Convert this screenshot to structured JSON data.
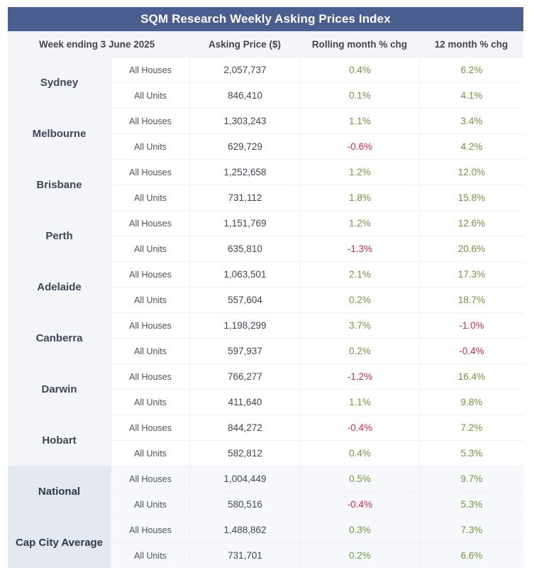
{
  "title": "SQM Research Weekly Asking Prices Index",
  "headers": {
    "week": "Week ending 3 June 2025",
    "price": "Asking Price ($)",
    "rolling": "Rolling month % chg",
    "twelve": "12 month % chg"
  },
  "colors": {
    "header_bar": "#4a5f8f",
    "positive": "#6d9a3a",
    "negative": "#d8284a"
  },
  "groups": [
    {
      "city": "Sydney",
      "rows": [
        {
          "type": "All Houses",
          "price": "2,057,737",
          "rolling": "0.4%",
          "twelve": "6.2%"
        },
        {
          "type": "All Units",
          "price": "846,410",
          "rolling": "0.1%",
          "twelve": "4.1%"
        }
      ]
    },
    {
      "city": "Melbourne",
      "rows": [
        {
          "type": "All Houses",
          "price": "1,303,243",
          "rolling": "1.1%",
          "twelve": "3.4%"
        },
        {
          "type": "All Units",
          "price": "629,729",
          "rolling": "-0.6%",
          "twelve": "4.2%"
        }
      ]
    },
    {
      "city": "Brisbane",
      "rows": [
        {
          "type": "All Houses",
          "price": "1,252,658",
          "rolling": "1.2%",
          "twelve": "12.0%"
        },
        {
          "type": "All Units",
          "price": "731,112",
          "rolling": "1.8%",
          "twelve": "15.8%"
        }
      ]
    },
    {
      "city": "Perth",
      "rows": [
        {
          "type": "All Houses",
          "price": "1,151,769",
          "rolling": "1.2%",
          "twelve": "12.6%"
        },
        {
          "type": "All Units",
          "price": "635,810",
          "rolling": "-1.3%",
          "twelve": "20.6%"
        }
      ]
    },
    {
      "city": "Adelaide",
      "rows": [
        {
          "type": "All Houses",
          "price": "1,063,501",
          "rolling": "2.1%",
          "twelve": "17.3%"
        },
        {
          "type": "All Units",
          "price": "557,604",
          "rolling": "0.2%",
          "twelve": "18.7%"
        }
      ]
    },
    {
      "city": "Canberra",
      "rows": [
        {
          "type": "All Houses",
          "price": "1,198,299",
          "rolling": "3.7%",
          "twelve": "-1.0%"
        },
        {
          "type": "All Units",
          "price": "597,937",
          "rolling": "0.2%",
          "twelve": "-0.4%"
        }
      ]
    },
    {
      "city": "Darwin",
      "rows": [
        {
          "type": "All Houses",
          "price": "766,277",
          "rolling": "-1.2%",
          "twelve": "16.4%"
        },
        {
          "type": "All Units",
          "price": "411,640",
          "rolling": "1.1%",
          "twelve": "9.8%"
        }
      ]
    },
    {
      "city": "Hobart",
      "rows": [
        {
          "type": "All Houses",
          "price": "844,272",
          "rolling": "-0.4%",
          "twelve": "7.2%"
        },
        {
          "type": "All Units",
          "price": "582,812",
          "rolling": "0.4%",
          "twelve": "5.3%"
        }
      ]
    },
    {
      "city": "National",
      "dark": true,
      "rows": [
        {
          "type": "All Houses",
          "price": "1,004,449",
          "rolling": "0.5%",
          "twelve": "9.7%"
        },
        {
          "type": "All Units",
          "price": "580,516",
          "rolling": "-0.4%",
          "twelve": "5.3%"
        }
      ]
    },
    {
      "city": "Cap City Average",
      "dark": true,
      "rows": [
        {
          "type": "All Houses",
          "price": "1,488,862",
          "rolling": "0.3%",
          "twelve": "7.3%"
        },
        {
          "type": "All Units",
          "price": "731,701",
          "rolling": "0.2%",
          "twelve": "6.6%"
        }
      ]
    }
  ]
}
